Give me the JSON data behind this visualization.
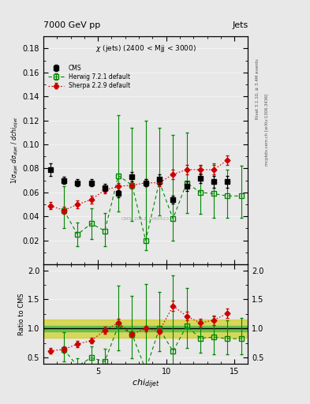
{
  "cms_x": [
    1.5,
    2.5,
    3.5,
    4.5,
    5.5,
    6.5,
    7.5,
    8.5,
    9.5,
    10.5,
    11.5,
    12.5,
    13.5,
    14.5
  ],
  "cms_y": [
    0.079,
    0.07,
    0.068,
    0.068,
    0.064,
    0.059,
    0.073,
    0.068,
    0.071,
    0.054,
    0.065,
    0.072,
    0.069,
    0.069
  ],
  "cms_yerr": [
    0.005,
    0.003,
    0.003,
    0.003,
    0.003,
    0.003,
    0.004,
    0.003,
    0.004,
    0.003,
    0.004,
    0.004,
    0.005,
    0.005
  ],
  "herwig_x": [
    2.5,
    3.5,
    4.5,
    5.5,
    6.5,
    7.5,
    8.5,
    9.5,
    10.5,
    11.5,
    12.5,
    13.5,
    14.5,
    15.5
  ],
  "herwig_y": [
    0.045,
    0.025,
    0.034,
    0.028,
    0.074,
    0.066,
    0.02,
    0.069,
    0.038,
    0.068,
    0.06,
    0.059,
    0.057,
    0.057
  ],
  "herwig_yerr_lo": [
    0.015,
    0.01,
    0.013,
    0.013,
    0.03,
    0.03,
    0.008,
    0.028,
    0.018,
    0.025,
    0.018,
    0.02,
    0.018,
    0.018
  ],
  "herwig_yerr_hi": [
    0.02,
    0.01,
    0.013,
    0.015,
    0.05,
    0.048,
    0.1,
    0.045,
    0.07,
    0.042,
    0.022,
    0.025,
    0.022,
    0.025
  ],
  "sherpa_x": [
    1.5,
    2.5,
    3.5,
    4.5,
    5.5,
    6.5,
    7.5,
    8.5,
    9.5,
    10.5,
    11.5,
    12.5,
    13.5,
    14.5
  ],
  "sherpa_y": [
    0.049,
    0.045,
    0.05,
    0.054,
    0.062,
    0.065,
    0.066,
    0.068,
    0.068,
    0.075,
    0.079,
    0.079,
    0.079,
    0.087
  ],
  "sherpa_yerr": [
    0.003,
    0.003,
    0.003,
    0.003,
    0.003,
    0.003,
    0.003,
    0.003,
    0.003,
    0.004,
    0.004,
    0.004,
    0.004,
    0.004
  ],
  "herwig_ratio": [
    0.643,
    0.357,
    0.5,
    0.438,
    1.055,
    0.904,
    0.294,
    1.0,
    0.611,
    1.046,
    0.833,
    0.855,
    0.826,
    0.826
  ],
  "herwig_ratio_err_lo": [
    0.21,
    0.14,
    0.19,
    0.19,
    0.43,
    0.41,
    0.12,
    0.39,
    0.47,
    0.38,
    0.25,
    0.29,
    0.26,
    0.26
  ],
  "herwig_ratio_err_hi": [
    0.29,
    0.14,
    0.19,
    0.22,
    0.68,
    0.65,
    1.47,
    0.63,
    1.3,
    0.65,
    0.31,
    0.36,
    0.32,
    0.36
  ],
  "sherpa_ratio": [
    0.62,
    0.643,
    0.735,
    0.794,
    0.969,
    1.102,
    0.904,
    1.0,
    0.958,
    1.389,
    1.215,
    1.097,
    1.145,
    1.261
  ],
  "sherpa_ratio_err": [
    0.05,
    0.05,
    0.05,
    0.05,
    0.06,
    0.06,
    0.05,
    0.05,
    0.05,
    0.09,
    0.08,
    0.07,
    0.08,
    0.08
  ],
  "band_outer_lo": 0.85,
  "band_outer_hi": 1.15,
  "band_inner_lo": 0.95,
  "band_inner_hi": 1.05,
  "ylim_main": [
    0.0,
    0.19
  ],
  "ylim_ratio": [
    0.4,
    2.1
  ],
  "xlim": [
    1,
    16
  ],
  "yticks_main": [
    0.02,
    0.04,
    0.06,
    0.08,
    0.1,
    0.12,
    0.14,
    0.16,
    0.18
  ],
  "yticks_ratio": [
    0.5,
    1.0,
    1.5,
    2.0
  ],
  "xticks": [
    5,
    10,
    15
  ],
  "cms_color": "black",
  "herwig_color": "#008800",
  "sherpa_color": "#cc0000",
  "band_inner_color": "#44bb44",
  "band_outer_color": "#cccc00",
  "title_left": "7000 GeV pp",
  "title_right": "Jets",
  "plot_title": "$\\chi$ (jets) (2400 < Mjj < 3000)",
  "ylabel_main": "$1/\\sigma_{dijet}$ $d\\sigma_{dijet}$ / $dchi_{dijet}$",
  "ylabel_ratio": "Ratio to CMS",
  "xlabel": "$chi_{dijet}$",
  "watermark": "CMS_2012_I090423",
  "right_label1": "Rivet 3.1.10, ≥ 3.4M events",
  "right_label2": "mcplots.cern.ch [arXiv:1306.3436]"
}
